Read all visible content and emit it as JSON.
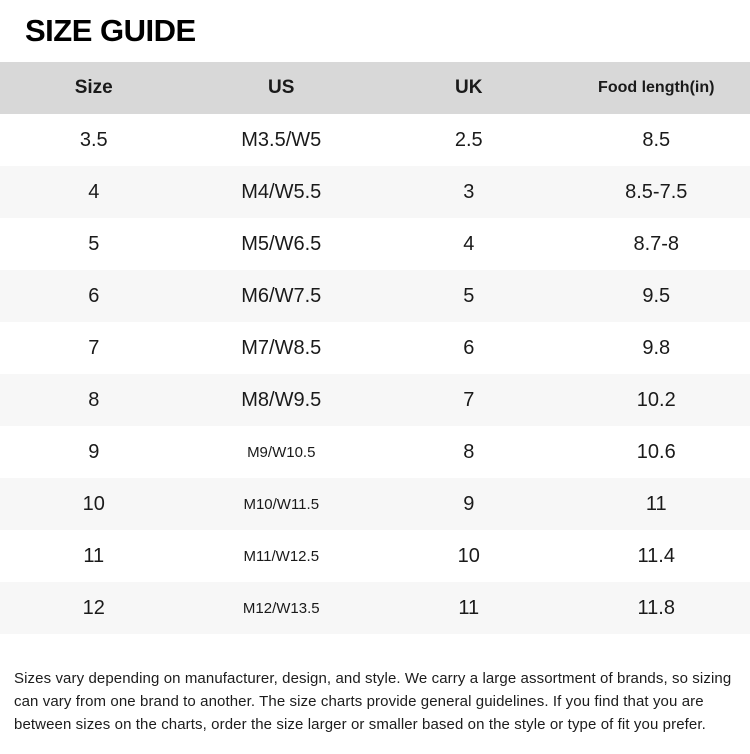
{
  "page": {
    "title": "SIZE GUIDE"
  },
  "table": {
    "headers": [
      "Size",
      "US",
      "UK",
      "Food length(in)"
    ],
    "rows": [
      [
        "3.5",
        "M3.5/W5",
        "2.5",
        "8.5"
      ],
      [
        "4",
        "M4/W5.5",
        "3",
        "8.5-7.5"
      ],
      [
        "5",
        "M5/W6.5",
        "4",
        "8.7-8"
      ],
      [
        "6",
        "M6/W7.5",
        "5",
        "9.5"
      ],
      [
        "7",
        "M7/W8.5",
        "6",
        "9.8"
      ],
      [
        "8",
        "M8/W9.5",
        "7",
        "10.2"
      ],
      [
        "9",
        "M9/W10.5",
        "8",
        "10.6"
      ],
      [
        "10",
        "M10/W11.5",
        "9",
        "11"
      ],
      [
        "11",
        "M11/W12.5",
        "10",
        "11.4"
      ],
      [
        "12",
        "M12/W13.5",
        "11",
        "11.8"
      ]
    ]
  },
  "footer": {
    "note": "Sizes vary depending on manufacturer, design, and style. We carry a large assortment of brands, so sizing can vary from one brand to another. The size charts provide general guidelines. If you find that you are between sizes on the charts, order the size larger or smaller based on the style or type of fit you prefer."
  },
  "colors": {
    "header_bg": "#d8d8d8",
    "stripe_bg": "#f7f7f7",
    "row_bg": "#ffffff",
    "text": "#1a1a1a"
  }
}
